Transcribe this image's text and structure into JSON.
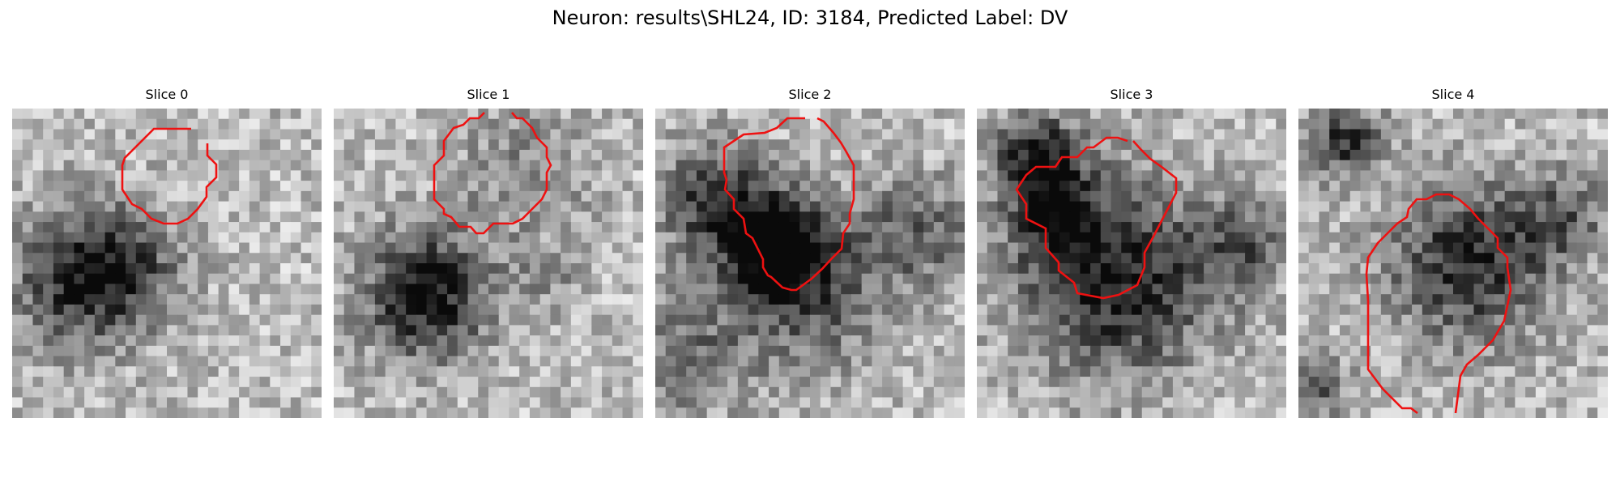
{
  "figure": {
    "title": "Neuron: results\\SHL24, ID: 3184, Predicted Label: DV"
  },
  "contour_color": "#ee1111",
  "colormap": "grayscale",
  "panels": [
    {
      "title": "Slice 0"
    },
    {
      "title": "Slice 1"
    },
    {
      "title": "Slice 2"
    },
    {
      "title": "Slice 3"
    },
    {
      "title": "Slice 4"
    }
  ]
}
